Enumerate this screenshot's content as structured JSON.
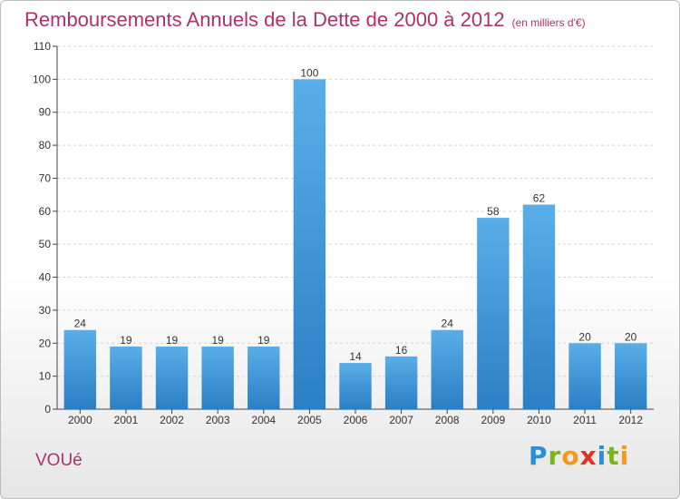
{
  "header": {
    "title": "Remboursements Annuels de la Dette de 2000 à 2012",
    "subtitle": "(en milliers d'€)"
  },
  "footer": {
    "commune": "VOUé",
    "logo": [
      "P",
      "r",
      "o",
      "x",
      "i",
      "t",
      "i"
    ]
  },
  "colors": {
    "bar_top": "#5aaee8",
    "bar_bottom": "#2b7fc4",
    "title": "#b0306a"
  },
  "chart_data": {
    "type": "bar",
    "categories": [
      "2000",
      "2001",
      "2002",
      "2003",
      "2004",
      "2005",
      "2006",
      "2007",
      "2008",
      "2009",
      "2010",
      "2011",
      "2012"
    ],
    "values": [
      24,
      19,
      19,
      19,
      19,
      100,
      14,
      16,
      24,
      58,
      62,
      20,
      20
    ],
    "data_labels": [
      "24",
      "19",
      "19",
      "19",
      "19",
      "100",
      "14",
      "16",
      "24",
      "58",
      "62",
      "20",
      "20"
    ],
    "yticks": [
      0,
      10,
      20,
      30,
      40,
      50,
      60,
      70,
      80,
      90,
      100,
      110
    ],
    "ylim": [
      0,
      110
    ],
    "grid": true,
    "legend": "none"
  }
}
